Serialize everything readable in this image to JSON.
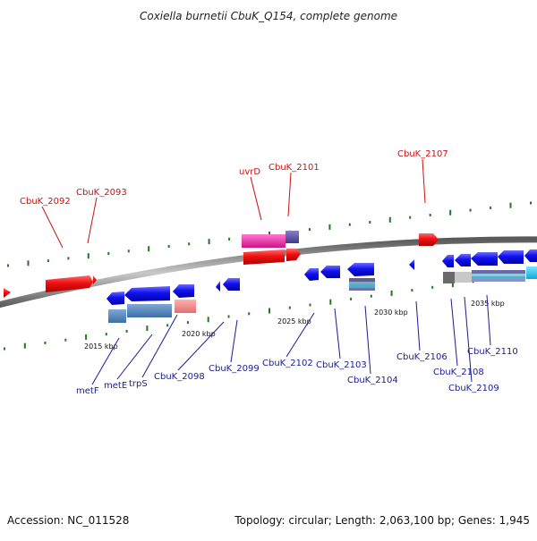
{
  "title": "Coxiella burnetii CbuK_Q154, complete genome",
  "footer": {
    "accession": "Accession: NC_011528",
    "topology": "Topology: circular; Length: 2,063,100 bp; Genes: 1,945"
  },
  "colors": {
    "forward_gene": "#ee1111",
    "reverse_gene": "#1111ee",
    "backbone": "#8a8a8a",
    "gc_tick": "#1f7a1f",
    "label_red": "#cc1111",
    "label_blue": "#1a1a9a"
  },
  "ticks": {
    "unit": "kbp",
    "values": [
      2015,
      2020,
      2025,
      2030,
      2035
    ],
    "labels": [
      "2015 kbp",
      "2020 kbp",
      "2025 kbp",
      "2030 kbp",
      "2035 kbp"
    ]
  },
  "forward_labels": [
    "CbuK_2092",
    "CbuK_2093",
    "uvrD",
    "CbuK_2101",
    "CbuK_2107"
  ],
  "reverse_labels": [
    "metF",
    "metE",
    "trpS",
    "CbuK_2098",
    "CbuK_2099",
    "CbuK_2102",
    "CbuK_2103",
    "CbuK_2104",
    "CbuK_2106",
    "CbuK_2108",
    "CbuK_2109",
    "CbuK_2110"
  ]
}
